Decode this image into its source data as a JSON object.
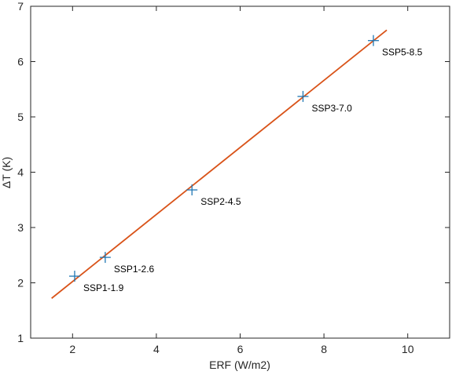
{
  "chart_data": {
    "type": "scatter",
    "title": "",
    "xlabel": "ERF (W/m2)",
    "ylabel": "ΔT (K)",
    "xlim": [
      1,
      11
    ],
    "ylim": [
      1,
      7
    ],
    "xticks": [
      2,
      4,
      6,
      8,
      10
    ],
    "yticks": [
      1,
      2,
      3,
      4,
      5,
      6,
      7
    ],
    "grid": false,
    "legend": "none",
    "series": [
      {
        "kind": "markers",
        "marker": "plus",
        "color": "#1f77b4",
        "points": [
          {
            "label": "SSP1-1.9",
            "x": 2.05,
            "y": 2.12
          },
          {
            "label": "SSP1-2.6",
            "x": 2.78,
            "y": 2.46
          },
          {
            "label": "SSP2-4.5",
            "x": 4.85,
            "y": 3.68
          },
          {
            "label": "SSP3-7.0",
            "x": 7.5,
            "y": 5.37
          },
          {
            "label": "SSP5-8.5",
            "x": 9.18,
            "y": 6.38
          }
        ]
      },
      {
        "kind": "fit-line",
        "color": "#d95319",
        "x": [
          1.5,
          9.5
        ],
        "y": [
          1.72,
          6.57
        ]
      }
    ]
  }
}
